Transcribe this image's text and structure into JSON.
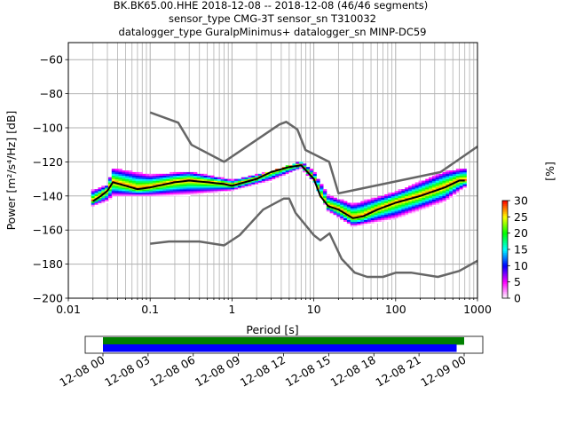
{
  "chart_data": {
    "type": "heatmap",
    "title_lines": [
      "BK.BK65.00.HHE   2018-12-08 -- 2018-12-08  (46/46 segments)",
      "sensor_type CMG-3T sensor_sn T310032",
      "datalogger_type GuralpMinimus+ datalogger_sn MINP-DC59"
    ],
    "xlabel": "Period [s]",
    "ylabel": "Power [m²/s⁴/Hz] [dB]",
    "xscale": "log",
    "xlim": [
      0.01,
      1000
    ],
    "ylim": [
      -200,
      -50
    ],
    "xticks": [
      {
        "v": 0.01,
        "label": "0.01"
      },
      {
        "v": 0.1,
        "label": "0.1"
      },
      {
        "v": 1,
        "label": "1"
      },
      {
        "v": 10,
        "label": "10"
      },
      {
        "v": 100,
        "label": "100"
      },
      {
        "v": 1000,
        "label": "1000"
      }
    ],
    "yticks": [
      {
        "v": -60,
        "label": "−60"
      },
      {
        "v": -80,
        "label": "−80"
      },
      {
        "v": -100,
        "label": "−100"
      },
      {
        "v": -120,
        "label": "−120"
      },
      {
        "v": -140,
        "label": "−140"
      },
      {
        "v": -160,
        "label": "−160"
      },
      {
        "v": -180,
        "label": "−180"
      },
      {
        "v": -200,
        "label": "−200"
      }
    ],
    "grid": true,
    "mean_curve": {
      "name": "mean",
      "color": "#000000",
      "period": [
        0.02,
        0.025,
        0.03,
        0.035,
        0.05,
        0.07,
        0.1,
        0.2,
        0.3,
        0.5,
        0.8,
        1,
        2,
        3,
        5,
        7,
        10,
        12,
        15,
        20,
        30,
        40,
        60,
        100,
        200,
        400,
        600,
        700
      ],
      "db": [
        -143,
        -140,
        -137,
        -132,
        -134,
        -136,
        -135,
        -132,
        -131,
        -132,
        -133,
        -134,
        -130,
        -126,
        -123,
        -122,
        -130,
        -140,
        -146,
        -148,
        -153,
        -152,
        -148,
        -144,
        -140,
        -135,
        -131,
        -131
      ]
    },
    "nhnm": {
      "name": "NHNM",
      "color": "#666666",
      "period": [
        0.1,
        0.22,
        0.32,
        0.8,
        3.8,
        4.6,
        6.3,
        7.9,
        15.4,
        20,
        354,
        1000
      ],
      "db": [
        -91,
        -97,
        -110,
        -120,
        -98,
        -96.5,
        -101,
        -113,
        -120,
        -138.5,
        -126,
        -111
      ]
    },
    "nlnm": {
      "name": "NLNM",
      "color": "#666666",
      "period": [
        0.1,
        0.17,
        0.4,
        0.8,
        1.24,
        2.4,
        4.3,
        5,
        6,
        10,
        12,
        15.6,
        21.9,
        31.6,
        45,
        70,
        101,
        154,
        328,
        600,
        1000
      ],
      "db": [
        -168,
        -166.7,
        -166.7,
        -169,
        -163,
        -148,
        -141.5,
        -141.5,
        -150,
        -163,
        -166,
        -162,
        -177,
        -185,
        -187.5,
        -187.5,
        -185,
        -185,
        -187.5,
        -184,
        -178
      ]
    },
    "spread": {
      "period": [
        0.02,
        0.03,
        0.035,
        0.1,
        0.3,
        1,
        3,
        7,
        10,
        15,
        30,
        100,
        400,
        700
      ],
      "upper_db": [
        -137,
        -134,
        -124,
        -128,
        -126,
        -131,
        -126,
        -120,
        -126,
        -140,
        -145,
        -138,
        -126,
        -124
      ],
      "lower_db": [
        -146,
        -143,
        -140,
        -140,
        -139,
        -137,
        -131,
        -124,
        -132,
        -149,
        -158,
        -153,
        -143,
        -135
      ]
    },
    "colorbar": {
      "label": "[%]",
      "range": [
        0,
        30
      ],
      "ticks": [
        "0",
        "5",
        "10",
        "15",
        "20",
        "25",
        "30"
      ],
      "colors": [
        "#ffffff",
        "#ff00ff",
        "#0000ff",
        "#00ffff",
        "#00ff00",
        "#ffff00",
        "#ff0000"
      ]
    },
    "timeline": {
      "range_hours": [
        0,
        24.5
      ],
      "start_offset_hours": -1.2,
      "tick_labels": [
        "12-08 00",
        "12-08 03",
        "12-08 06",
        "12-08 09",
        "12-08 12",
        "12-08 15",
        "12-08 18",
        "12-08 21",
        "12-09 00"
      ],
      "bars": [
        {
          "name": "data-coverage",
          "color": "#008000",
          "start_h": 0,
          "end_h": 24
        },
        {
          "name": "psd-segments",
          "color": "#0000ff",
          "start_h": 0,
          "end_h": 23.5
        }
      ]
    }
  }
}
